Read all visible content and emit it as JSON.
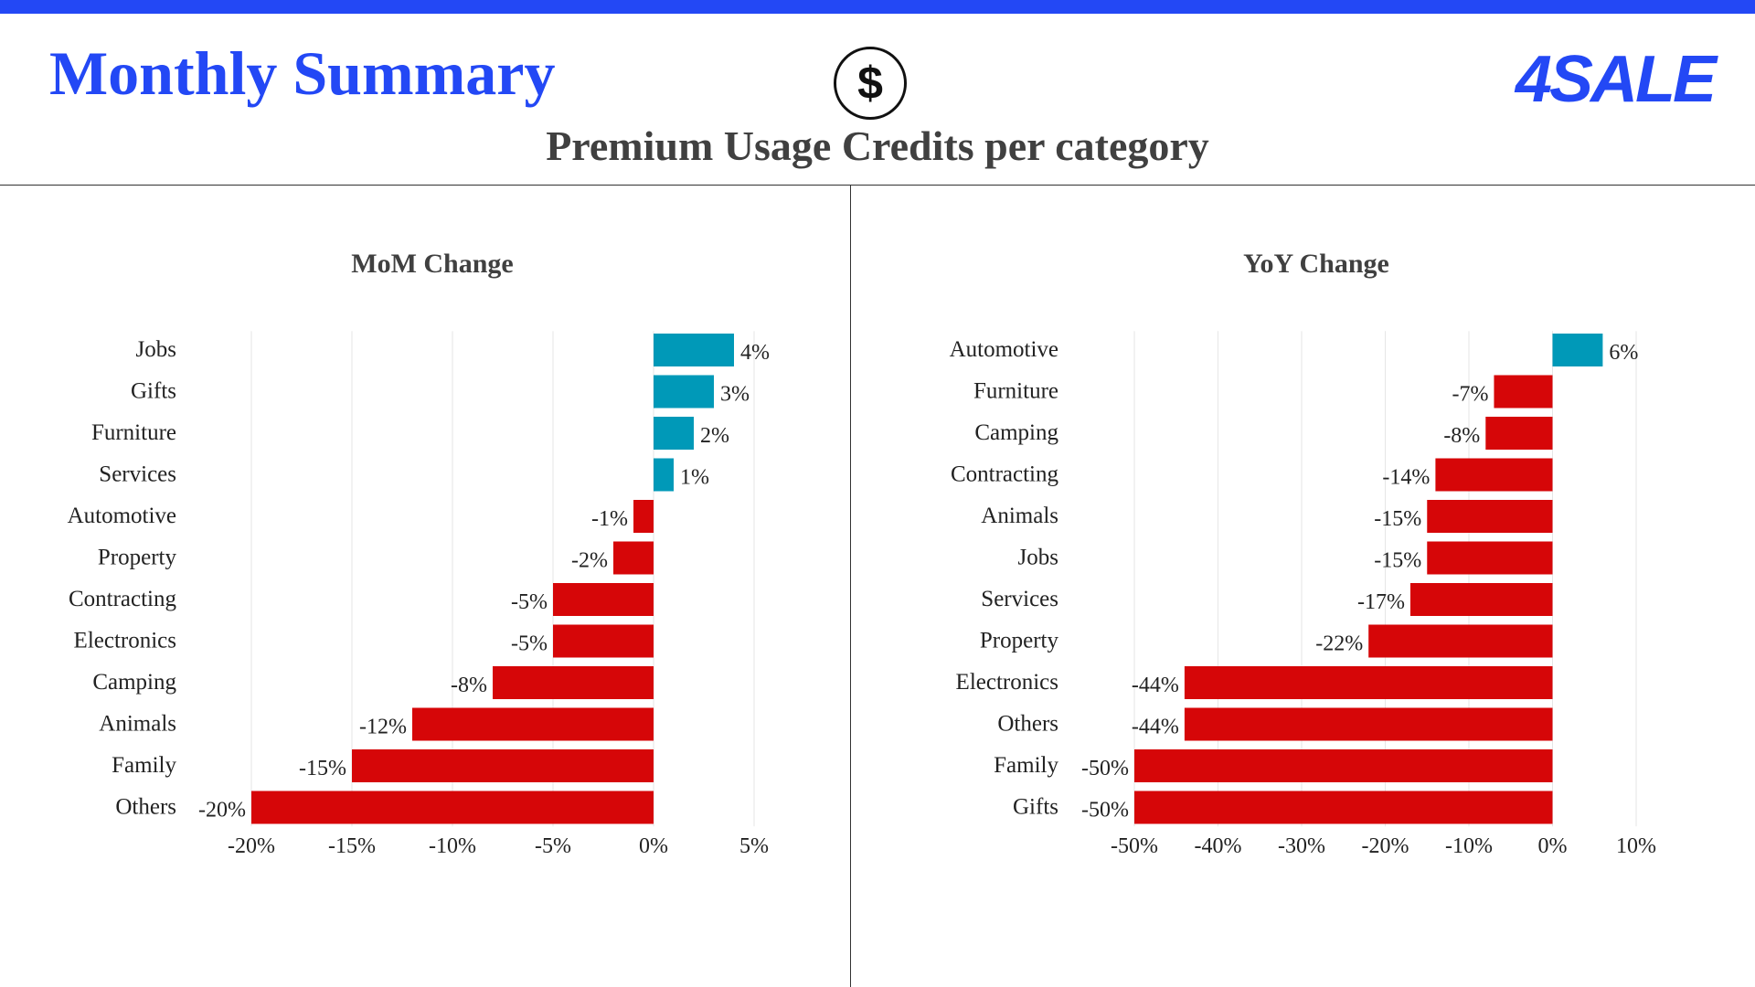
{
  "header": {
    "title": "Monthly Summary",
    "icon": "dollar-coin-icon",
    "coin_glyph": "$",
    "logo_text": "4SALE",
    "subtitle": "Premium Usage Credits per category"
  },
  "colors": {
    "accent": "#2348F5",
    "positive": "#0099B8",
    "negative": "#D60608",
    "text": "#222222",
    "grid": "#E6E6E6"
  },
  "chart_data": [
    {
      "type": "bar",
      "orientation": "horizontal",
      "title": "MoM Change",
      "categories": [
        "Jobs",
        "Gifts",
        "Furniture",
        "Services",
        "Automotive",
        "Property",
        "Contracting",
        "Electronics",
        "Camping",
        "Animals",
        "Family",
        "Others"
      ],
      "values": [
        4,
        3,
        2,
        1,
        -1,
        -2,
        -5,
        -5,
        -8,
        -12,
        -15,
        -20
      ],
      "value_labels": [
        "4%",
        "3%",
        "2%",
        "1%",
        "-1%",
        "-2%",
        "-5%",
        "-5%",
        "-8%",
        "-12%",
        "-15%",
        "-20%"
      ],
      "xlim": [
        -20,
        5
      ],
      "xticks": [
        -20,
        -15,
        -10,
        -5,
        0,
        5
      ],
      "xtick_labels": [
        "-20%",
        "-15%",
        "-10%",
        "-5%",
        "0%",
        "5%"
      ],
      "xlabel": "",
      "ylabel": "",
      "grid": true
    },
    {
      "type": "bar",
      "orientation": "horizontal",
      "title": "YoY Change",
      "categories": [
        "Automotive",
        "Furniture",
        "Camping",
        "Contracting",
        "Animals",
        "Jobs",
        "Services",
        "Property",
        "Electronics",
        "Others",
        "Family",
        "Gifts"
      ],
      "values": [
        6,
        -7,
        -8,
        -14,
        -15,
        -15,
        -17,
        -22,
        -44,
        -44,
        -50,
        -50
      ],
      "value_labels": [
        "6%",
        "-7%",
        "-8%",
        "-14%",
        "-15%",
        "-15%",
        "-17%",
        "-22%",
        "-44%",
        "-44%",
        "-50%",
        "-50%"
      ],
      "xlim": [
        -50,
        10
      ],
      "xticks": [
        -50,
        -40,
        -30,
        -20,
        -10,
        0,
        10
      ],
      "xtick_labels": [
        "-50%",
        "-40%",
        "-30%",
        "-20%",
        "-10%",
        "0%",
        "10%"
      ],
      "xlabel": "",
      "ylabel": "",
      "grid": true
    }
  ]
}
